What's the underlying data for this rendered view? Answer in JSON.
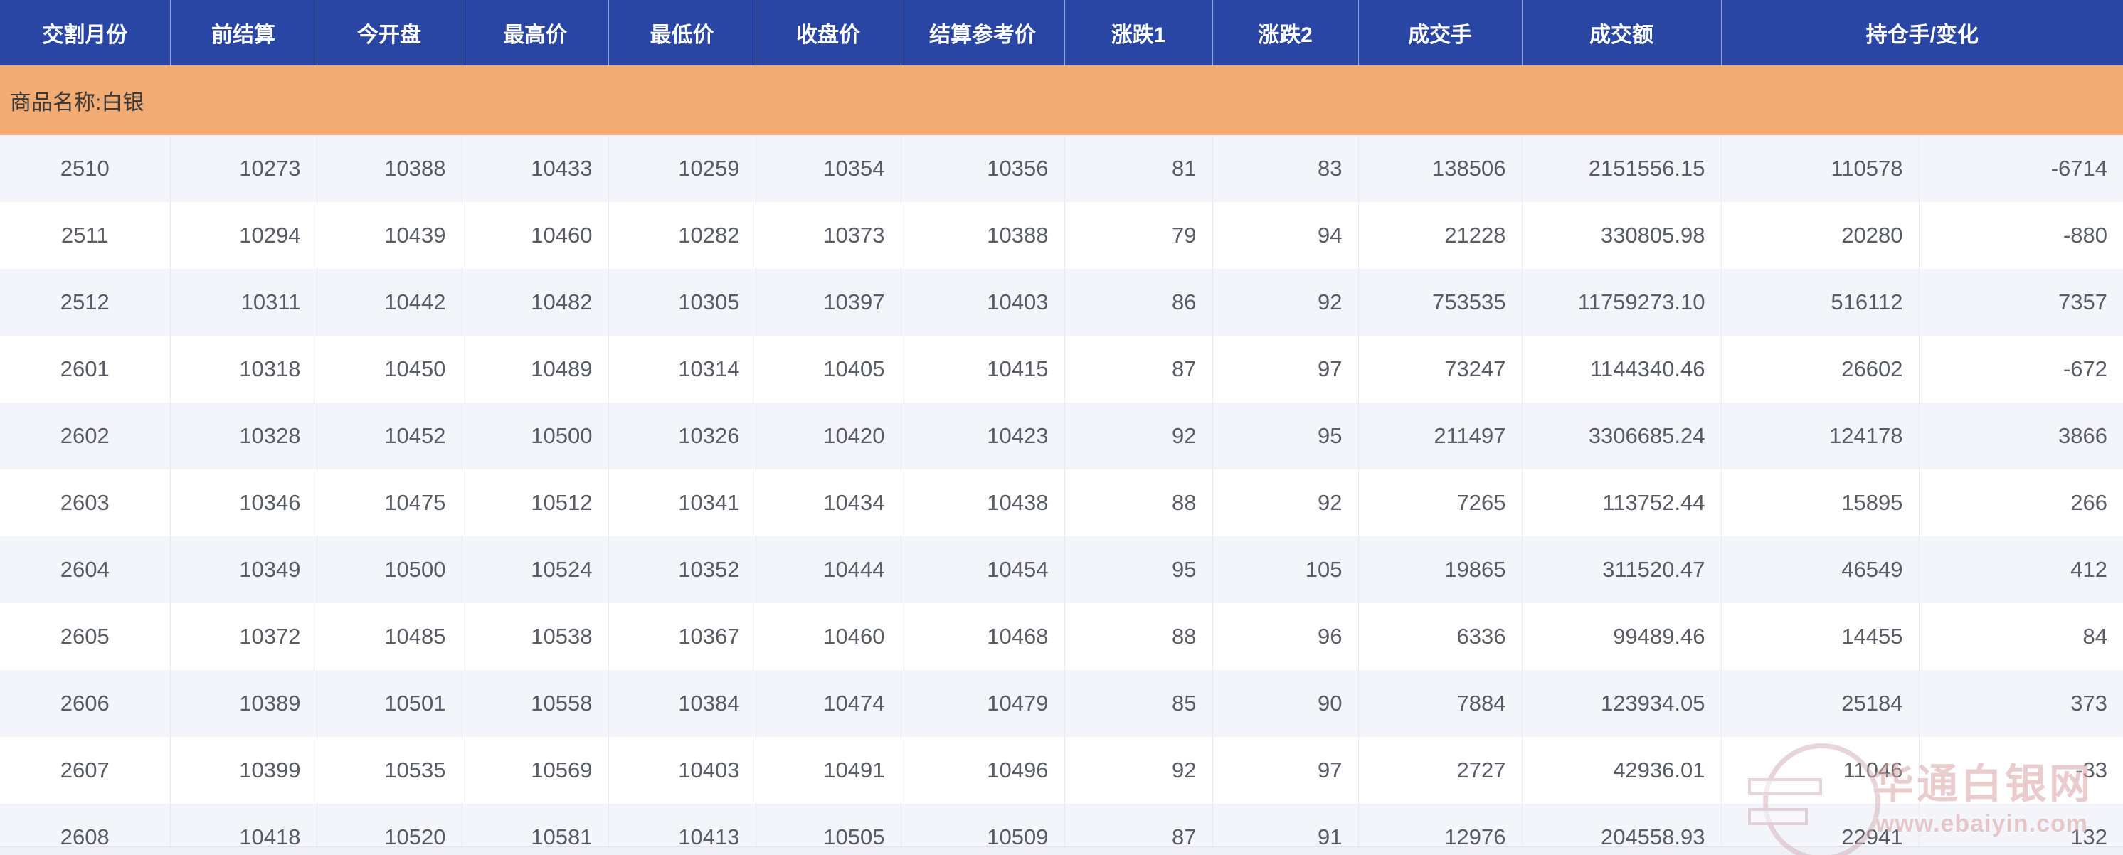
{
  "table": {
    "group_label": "商品名称:白银",
    "headers": [
      "交割月份",
      "前结算",
      "今开盘",
      "最高价",
      "最低价",
      "收盘价",
      "结算参考价",
      "涨跌1",
      "涨跌2",
      "成交手",
      "成交额",
      "持仓手/变化"
    ],
    "rows": [
      [
        "2510",
        "10273",
        "10388",
        "10433",
        "10259",
        "10354",
        "10356",
        "81",
        "83",
        "138506",
        "2151556.15",
        "110578",
        "-6714"
      ],
      [
        "2511",
        "10294",
        "10439",
        "10460",
        "10282",
        "10373",
        "10388",
        "79",
        "94",
        "21228",
        "330805.98",
        "20280",
        "-880"
      ],
      [
        "2512",
        "10311",
        "10442",
        "10482",
        "10305",
        "10397",
        "10403",
        "86",
        "92",
        "753535",
        "11759273.10",
        "516112",
        "7357"
      ],
      [
        "2601",
        "10318",
        "10450",
        "10489",
        "10314",
        "10405",
        "10415",
        "87",
        "97",
        "73247",
        "1144340.46",
        "26602",
        "-672"
      ],
      [
        "2602",
        "10328",
        "10452",
        "10500",
        "10326",
        "10420",
        "10423",
        "92",
        "95",
        "211497",
        "3306685.24",
        "124178",
        "3866"
      ],
      [
        "2603",
        "10346",
        "10475",
        "10512",
        "10341",
        "10434",
        "10438",
        "88",
        "92",
        "7265",
        "113752.44",
        "15895",
        "266"
      ],
      [
        "2604",
        "10349",
        "10500",
        "10524",
        "10352",
        "10444",
        "10454",
        "95",
        "105",
        "19865",
        "311520.47",
        "46549",
        "412"
      ],
      [
        "2605",
        "10372",
        "10485",
        "10538",
        "10367",
        "10460",
        "10468",
        "88",
        "96",
        "6336",
        "99489.46",
        "14455",
        "84"
      ],
      [
        "2606",
        "10389",
        "10501",
        "10558",
        "10384",
        "10474",
        "10479",
        "85",
        "90",
        "7884",
        "123934.05",
        "25184",
        "373"
      ],
      [
        "2607",
        "10399",
        "10535",
        "10569",
        "10403",
        "10491",
        "10496",
        "92",
        "97",
        "2727",
        "42936.01",
        "11046",
        "-33"
      ],
      [
        "2608",
        "10418",
        "10520",
        "10581",
        "10413",
        "10505",
        "10509",
        "87",
        "91",
        "12976",
        "204558.93",
        "22941",
        "132"
      ]
    ]
  },
  "watermark": {
    "logo_icon": "ebaiyin-logo",
    "title": "华通白银网",
    "url": "www.ebaiyin.com"
  },
  "colors": {
    "header_bg": "#2946a4",
    "header_text": "#ffffff",
    "group_bg": "#f2ab72",
    "row_alt_bg": "#f4f5fa",
    "row_bg": "#ffffff",
    "cell_text": "#585c64",
    "grid_line": "#e8eaf2",
    "watermark": "#d9a3a3"
  }
}
